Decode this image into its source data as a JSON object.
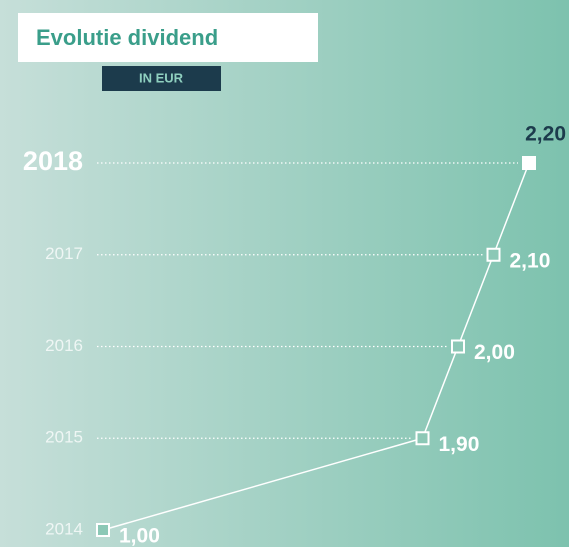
{
  "chart_data": {
    "type": "line",
    "title": "Evolutie dividend",
    "subtitle": "IN EUR",
    "categories": [
      "2014",
      "2015",
      "2016",
      "2017",
      "2018"
    ],
    "values": [
      1.0,
      1.9,
      2.0,
      2.1,
      2.2
    ],
    "value_labels": [
      "1,00",
      "1,90",
      "2,00",
      "2,10",
      "2,20"
    ],
    "xlim": [
      1.0,
      2.2
    ],
    "color": "#ffffff"
  }
}
